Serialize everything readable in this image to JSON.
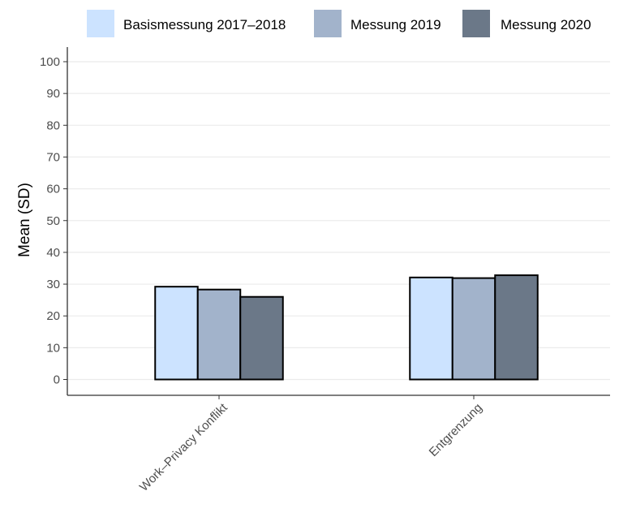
{
  "chart_data": {
    "type": "bar",
    "categories": [
      "Work–Privacy Konflikt",
      "Entgrenzung"
    ],
    "series": [
      {
        "name": "Basismessung 2017–2018",
        "color": "#cce3ff",
        "values": [
          29.2,
          32.1
        ]
      },
      {
        "name": "Messung 2019",
        "color": "#a2b3cb",
        "values": [
          28.3,
          31.9
        ]
      },
      {
        "name": "Messung 2020",
        "color": "#6b7888",
        "values": [
          26.0,
          32.8
        ]
      }
    ],
    "title": "",
    "xlabel": "",
    "ylabel": "Mean (SD)",
    "ylim": [
      0,
      100
    ],
    "yticks": [
      "0",
      "10",
      "20",
      "30",
      "40",
      "50",
      "60",
      "70",
      "80",
      "90",
      "100"
    ],
    "grid": true,
    "legend_position": "top"
  }
}
